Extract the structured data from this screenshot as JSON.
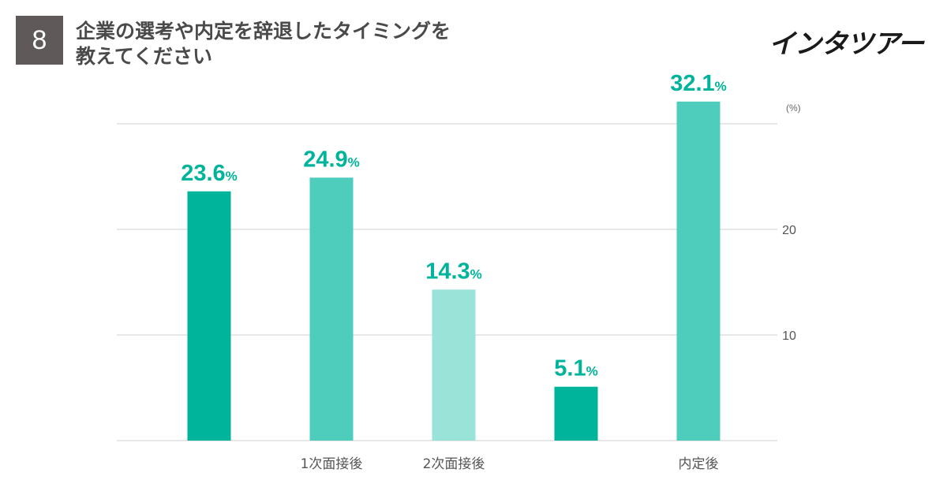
{
  "header": {
    "question_number": "8",
    "title_line1": "企業の選考や内定を辞退したタイミングを",
    "title_line2": "教えてください",
    "logo_text": "インタツアー"
  },
  "colors": {
    "badge": "#5f5a59",
    "teal_dark": "#00b39b",
    "teal_mid": "#4ecdbd",
    "teal_light": "#9ae3d9",
    "label": "#00b39b",
    "grid": "#cfcfcf"
  },
  "chart_data": {
    "type": "bar",
    "unit_label": "(%)",
    "categories": [
      "",
      "1次面接後",
      "2次面接後",
      "",
      "内定後"
    ],
    "values": [
      23.6,
      24.9,
      14.3,
      5.1,
      32.1
    ],
    "value_labels": [
      "23.6",
      "24.9",
      "14.3",
      "5.1",
      "32.1"
    ],
    "value_suffix": "%",
    "bar_colors": [
      "#00b39b",
      "#4ecdbd",
      "#9ae3d9",
      "#00b39b",
      "#4ecdbd"
    ],
    "ylim": [
      0,
      30
    ],
    "yticks": [
      10,
      20
    ],
    "grid": true
  }
}
